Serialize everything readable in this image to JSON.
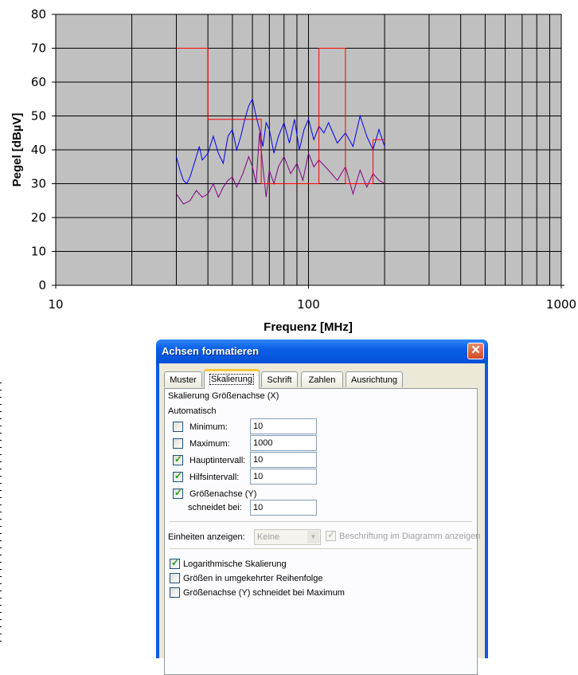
{
  "chart_data": {
    "type": "line",
    "xscale": "log",
    "xlim": [
      10,
      1000
    ],
    "ylim": [
      0,
      80
    ],
    "xlabel": "Frequenz [MHz]",
    "ylabel": "Pegel [dBµV]",
    "xticks": [
      "10",
      "100",
      "1000"
    ],
    "yticks": [
      "0",
      "10",
      "20",
      "30",
      "40",
      "50",
      "60",
      "70",
      "80"
    ],
    "grid": true,
    "background": "#c0c0c0",
    "series": [
      {
        "color": "#0000ee",
        "x": [
          30,
          31,
          32,
          33,
          34,
          35,
          36,
          37,
          38,
          40,
          42,
          44,
          46,
          48,
          50,
          52,
          54,
          56,
          58,
          60,
          62,
          64,
          66,
          68,
          70,
          73,
          76,
          80,
          84,
          88,
          92,
          96,
          100,
          105,
          110,
          115,
          120,
          130,
          140,
          150,
          160,
          170,
          180,
          190,
          200
        ],
        "y": [
          38,
          34,
          31,
          30,
          32,
          35,
          38,
          41,
          37,
          39,
          44,
          39,
          36,
          44,
          46,
          40,
          44,
          49,
          53,
          55,
          50,
          46,
          41,
          48,
          46,
          39,
          44,
          48,
          42,
          49,
          40,
          46,
          49,
          43,
          47,
          45,
          48,
          42,
          45,
          41,
          50,
          44,
          40,
          46,
          41
        ]
      },
      {
        "color": "#800080",
        "x": [
          30,
          32,
          34,
          36,
          38,
          40,
          42,
          44,
          46,
          48,
          50,
          52,
          55,
          58,
          60,
          62,
          64,
          66,
          68,
          70,
          73,
          76,
          80,
          85,
          90,
          95,
          100,
          105,
          110,
          120,
          130,
          140,
          150,
          160,
          170,
          180,
          190,
          200
        ],
        "y": [
          27,
          24,
          25,
          28,
          26,
          27,
          30,
          26,
          29,
          31,
          32,
          29,
          33,
          38,
          35,
          30,
          45,
          35,
          26,
          34,
          30,
          35,
          38,
          33,
          36,
          31,
          39,
          35,
          37,
          34,
          31,
          35,
          27,
          34,
          29,
          33,
          31,
          30
        ]
      },
      {
        "color": "#ff0000",
        "x": [
          30,
          40,
          40,
          65,
          65,
          110,
          110,
          140,
          140,
          180,
          180,
          200
        ],
        "y": [
          70,
          70,
          49,
          49,
          30,
          30,
          70,
          70,
          30,
          30,
          43,
          43
        ]
      }
    ]
  },
  "dialog": {
    "title": "Achsen formatieren",
    "close_label": "✕",
    "tabs": [
      "Muster",
      "Skalierung",
      "Schrift",
      "Zahlen",
      "Ausrichtung"
    ],
    "section_title": "Skalierung Größenachse (X)",
    "auto_label": "Automatisch",
    "minimum": {
      "label": "Minimum:",
      "value": "10",
      "checked": false
    },
    "maximum": {
      "label": "Maximum:",
      "value": "1000",
      "checked": false
    },
    "major": {
      "label": "Hauptintervall:",
      "value": "10",
      "checked": true
    },
    "minor": {
      "label": "Hilfsintervall:",
      "value": "10",
      "checked": true
    },
    "crosses": {
      "label": "Größenachse (Y)",
      "label2": "schneidet bei:",
      "value": "10",
      "checked": true
    },
    "units_label": "Einheiten anzeigen:",
    "units_value": "Keine",
    "show_label": "Beschriftung im Diagramm anzeigen",
    "log_scale": {
      "label": "Logarithmische Skalierung",
      "checked": true
    },
    "reverse": {
      "label": "Größen in umgekehrter Reihenfolge",
      "checked": false
    },
    "cross_max": {
      "label": "Größenachse (Y) schneidet bei Maximum",
      "checked": false
    }
  }
}
